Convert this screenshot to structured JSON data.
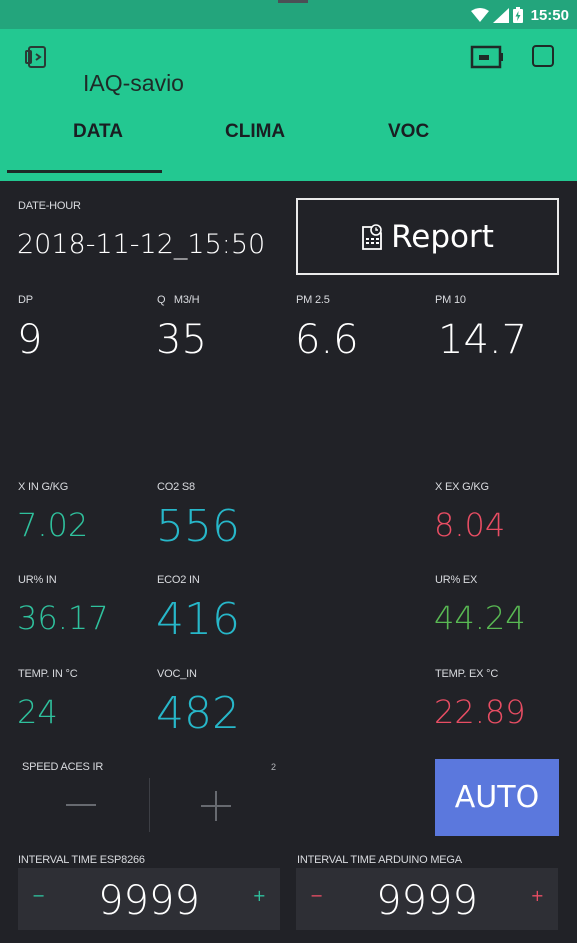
{
  "status": {
    "time": "15:50"
  },
  "app": {
    "title": "IAQ-savio"
  },
  "tabs": [
    {
      "label": "DATA"
    },
    {
      "label": "CLIMA"
    },
    {
      "label": "VOC"
    }
  ],
  "date": {
    "label": "DATE-HOUR",
    "value": "2018-11-12_15:50"
  },
  "report": {
    "label": "Report"
  },
  "metrics_top": [
    {
      "label": "DP",
      "value": "9"
    },
    {
      "label": "Q   M3/H",
      "value": "35"
    },
    {
      "label": "PM 2.5",
      "value": "6.6"
    },
    {
      "label": "PM 10",
      "value": "14.7"
    }
  ],
  "x_in": {
    "label": "X IN G/KG",
    "value": "7.02"
  },
  "co2": {
    "label": "CO2 S8",
    "value": "556"
  },
  "x_ex": {
    "label": "X EX G/KG",
    "value": "8.04"
  },
  "ur_in": {
    "label": "UR% IN",
    "value": "36.17"
  },
  "eco2": {
    "label": "ECO2 IN",
    "value": "416"
  },
  "ur_ex": {
    "label": "UR% EX",
    "value": "44.24"
  },
  "temp_in": {
    "label": "TEMP. IN °C",
    "value": "24"
  },
  "voc_in": {
    "label": "VOC_IN",
    "value": "482"
  },
  "temp_ex": {
    "label": "TEMP. EX °C",
    "value": "22.89"
  },
  "speed": {
    "label": "SPEED ACES IR",
    "value": "2"
  },
  "auto_button": {
    "label": "AUTO"
  },
  "interval_esp": {
    "label": "INTERVAL TIME ESP8266",
    "value": "9999",
    "minus": "−",
    "plus": "+"
  },
  "interval_mega": {
    "label": "INTERVAL TIME ARDUINO MEGA",
    "value": "9999",
    "minus": "−",
    "plus": "+"
  },
  "colors": {
    "accent": "#23c891",
    "status_bar": "#23a57c",
    "background": "#212227",
    "auto_button": "#5b78dd",
    "green": "#2fc19d",
    "cyan": "#27b7c9",
    "red": "#e84d63",
    "lime": "#59b953"
  }
}
